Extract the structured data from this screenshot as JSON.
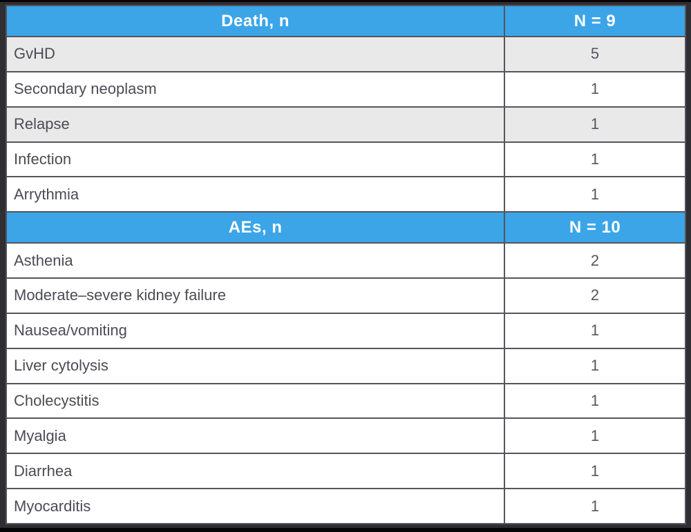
{
  "chart_data": [
    {
      "type": "table",
      "title": "Death, n",
      "header": {
        "label": "Death, n",
        "count": "N = 9"
      },
      "columns": [
        "Death, n",
        "N = 9"
      ],
      "rows": [
        {
          "label": "GvHD",
          "value": "5"
        },
        {
          "label": "Secondary neoplasm",
          "value": "1"
        },
        {
          "label": "Relapse",
          "value": "1"
        },
        {
          "label": "Infection",
          "value": "1"
        },
        {
          "label": "Arrythmia",
          "value": "1"
        }
      ]
    },
    {
      "type": "table",
      "title": "AEs, n",
      "header": {
        "label": "AEs, n",
        "count": "N = 10"
      },
      "columns": [
        "AEs, n",
        "N = 10"
      ],
      "rows": [
        {
          "label": "Asthenia",
          "value": "2"
        },
        {
          "label": "Moderate–severe kidney failure",
          "value": "2"
        },
        {
          "label": "Nausea/vomiting",
          "value": "1"
        },
        {
          "label": "Liver cytolysis",
          "value": "1"
        },
        {
          "label": "Cholecystitis",
          "value": "1"
        },
        {
          "label": "Myalgia",
          "value": "1"
        },
        {
          "label": "Diarrhea",
          "value": "1"
        },
        {
          "label": "Myocarditis",
          "value": "1"
        }
      ]
    }
  ],
  "colors": {
    "header_bg": "#3BA5E8",
    "header_text": "#FFFFFF",
    "row_shaded_bg": "#E9E9EA",
    "row_bg": "#FFFFFF",
    "border": "#54545B",
    "body_text": "#4B4B53",
    "page_bg": "#2E2E33"
  }
}
